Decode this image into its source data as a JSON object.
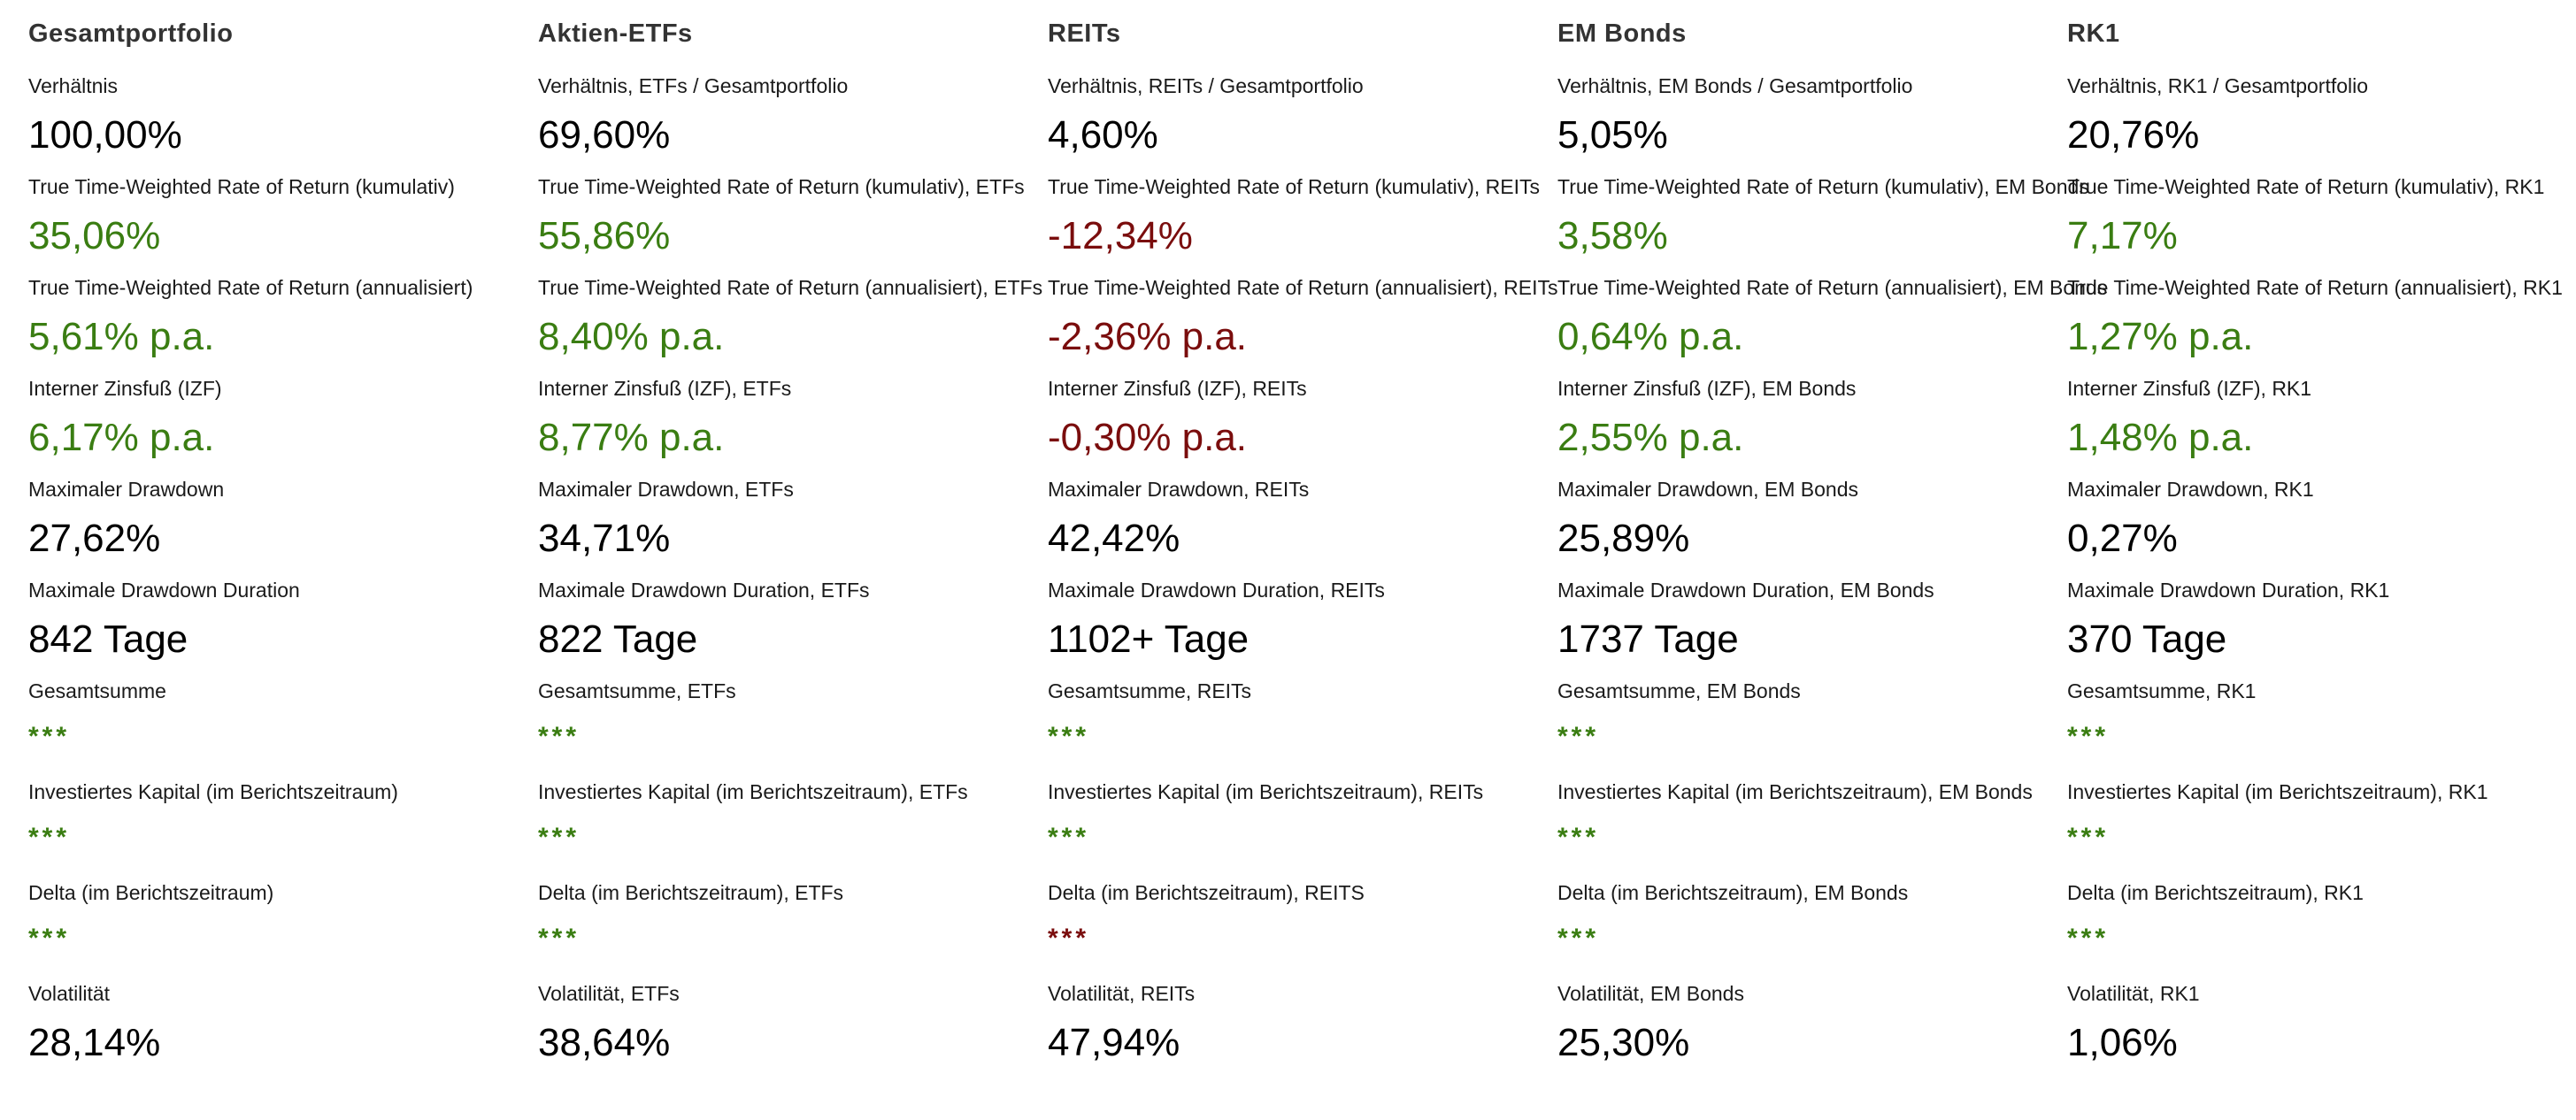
{
  "colors": {
    "positive": "#3a7d12",
    "negative": "#7a0d0d",
    "neutral": "#000000"
  },
  "columns": [
    {
      "title": "Gesamtportfolio",
      "metrics": [
        {
          "label": "Verhältnis",
          "value": "100,00%",
          "tone": "neutral"
        },
        {
          "label": "True Time-Weighted Rate of Return (kumulativ)",
          "value": "35,06%",
          "tone": "pos"
        },
        {
          "label": "True Time-Weighted Rate of Return (annualisiert)",
          "value": "5,61% p.a.",
          "tone": "pos"
        },
        {
          "label": "Interner Zinsfuß (IZF)",
          "value": "6,17% p.a.",
          "tone": "pos"
        },
        {
          "label": "Maximaler Drawdown",
          "value": "27,62%",
          "tone": "neutral"
        },
        {
          "label": "Maximale Drawdown Duration",
          "value": "842 Tage",
          "tone": "neutral"
        },
        {
          "label": "Gesamtsumme",
          "value": "***",
          "tone": "pos"
        },
        {
          "label": "Investiertes Kapital (im Berichtszeitraum)",
          "value": "***",
          "tone": "pos"
        },
        {
          "label": "Delta (im Berichtszeitraum)",
          "value": "***",
          "tone": "pos"
        },
        {
          "label": "Volatilität",
          "value": "28,14%",
          "tone": "neutral"
        }
      ]
    },
    {
      "title": "Aktien-ETFs",
      "metrics": [
        {
          "label": "Verhältnis, ETFs / Gesamtportfolio",
          "value": "69,60%",
          "tone": "neutral"
        },
        {
          "label": "True Time-Weighted Rate of Return (kumulativ), ETFs",
          "value": "55,86%",
          "tone": "pos"
        },
        {
          "label": "True Time-Weighted Rate of Return (annualisiert), ETFs",
          "value": "8,40% p.a.",
          "tone": "pos"
        },
        {
          "label": "Interner Zinsfuß (IZF), ETFs",
          "value": "8,77% p.a.",
          "tone": "pos"
        },
        {
          "label": "Maximaler Drawdown, ETFs",
          "value": "34,71%",
          "tone": "neutral"
        },
        {
          "label": "Maximale Drawdown Duration, ETFs",
          "value": "822 Tage",
          "tone": "neutral"
        },
        {
          "label": "Gesamtsumme, ETFs",
          "value": "***",
          "tone": "pos"
        },
        {
          "label": "Investiertes Kapital (im Berichtszeitraum), ETFs",
          "value": "***",
          "tone": "pos"
        },
        {
          "label": "Delta (im Berichtszeitraum), ETFs",
          "value": "***",
          "tone": "pos"
        },
        {
          "label": "Volatilität, ETFs",
          "value": "38,64%",
          "tone": "neutral"
        }
      ]
    },
    {
      "title": "REITs",
      "metrics": [
        {
          "label": "Verhältnis, REITs / Gesamtportfolio",
          "value": "4,60%",
          "tone": "neutral"
        },
        {
          "label": "True Time-Weighted Rate of Return (kumulativ), REITs",
          "value": "-12,34%",
          "tone": "neg"
        },
        {
          "label": "True Time-Weighted Rate of Return (annualisiert), REITs",
          "value": "-2,36% p.a.",
          "tone": "neg"
        },
        {
          "label": "Interner Zinsfuß (IZF), REITs",
          "value": "-0,30% p.a.",
          "tone": "neg"
        },
        {
          "label": "Maximaler Drawdown, REITs",
          "value": "42,42%",
          "tone": "neutral"
        },
        {
          "label": "Maximale Drawdown Duration, REITs",
          "value": "1102+ Tage",
          "tone": "neutral"
        },
        {
          "label": "Gesamtsumme, REITs",
          "value": "***",
          "tone": "pos"
        },
        {
          "label": "Investiertes Kapital (im Berichtszeitraum), REITs",
          "value": "***",
          "tone": "pos"
        },
        {
          "label": "Delta (im Berichtszeitraum), REITS",
          "value": "***",
          "tone": "neg"
        },
        {
          "label": "Volatilität, REITs",
          "value": "47,94%",
          "tone": "neutral"
        }
      ]
    },
    {
      "title": "EM Bonds",
      "metrics": [
        {
          "label": "Verhältnis, EM Bonds / Gesamtportfolio",
          "value": "5,05%",
          "tone": "neutral"
        },
        {
          "label": "True Time-Weighted Rate of Return (kumulativ), EM Bonds",
          "value": "3,58%",
          "tone": "pos"
        },
        {
          "label": "True Time-Weighted Rate of Return (annualisiert), EM Bonds",
          "value": "0,64% p.a.",
          "tone": "pos"
        },
        {
          "label": "Interner Zinsfuß (IZF), EM Bonds",
          "value": "2,55% p.a.",
          "tone": "pos"
        },
        {
          "label": "Maximaler Drawdown, EM Bonds",
          "value": "25,89%",
          "tone": "neutral"
        },
        {
          "label": "Maximale Drawdown Duration, EM Bonds",
          "value": "1737 Tage",
          "tone": "neutral"
        },
        {
          "label": "Gesamtsumme, EM Bonds",
          "value": "***",
          "tone": "pos"
        },
        {
          "label": "Investiertes Kapital (im Berichtszeitraum), EM Bonds",
          "value": "***",
          "tone": "pos"
        },
        {
          "label": "Delta (im Berichtszeitraum), EM Bonds",
          "value": "***",
          "tone": "pos"
        },
        {
          "label": "Volatilität, EM Bonds",
          "value": "25,30%",
          "tone": "neutral"
        }
      ]
    },
    {
      "title": "RK1",
      "metrics": [
        {
          "label": "Verhältnis, RK1 / Gesamtportfolio",
          "value": "20,76%",
          "tone": "neutral"
        },
        {
          "label": "True Time-Weighted Rate of Return (kumulativ), RK1",
          "value": "7,17%",
          "tone": "pos"
        },
        {
          "label": "True Time-Weighted Rate of Return (annualisiert), RK1",
          "value": "1,27% p.a.",
          "tone": "pos"
        },
        {
          "label": "Interner Zinsfuß (IZF), RK1",
          "value": "1,48% p.a.",
          "tone": "pos"
        },
        {
          "label": "Maximaler Drawdown, RK1",
          "value": "0,27%",
          "tone": "neutral"
        },
        {
          "label": "Maximale Drawdown Duration, RK1",
          "value": "370 Tage",
          "tone": "neutral"
        },
        {
          "label": "Gesamtsumme, RK1",
          "value": "***",
          "tone": "pos"
        },
        {
          "label": "Investiertes Kapital (im Berichtszeitraum), RK1",
          "value": "***",
          "tone": "pos"
        },
        {
          "label": "Delta (im Berichtszeitraum), RK1",
          "value": "***",
          "tone": "pos"
        },
        {
          "label": "Volatilität, RK1",
          "value": "1,06%",
          "tone": "neutral"
        }
      ]
    }
  ]
}
